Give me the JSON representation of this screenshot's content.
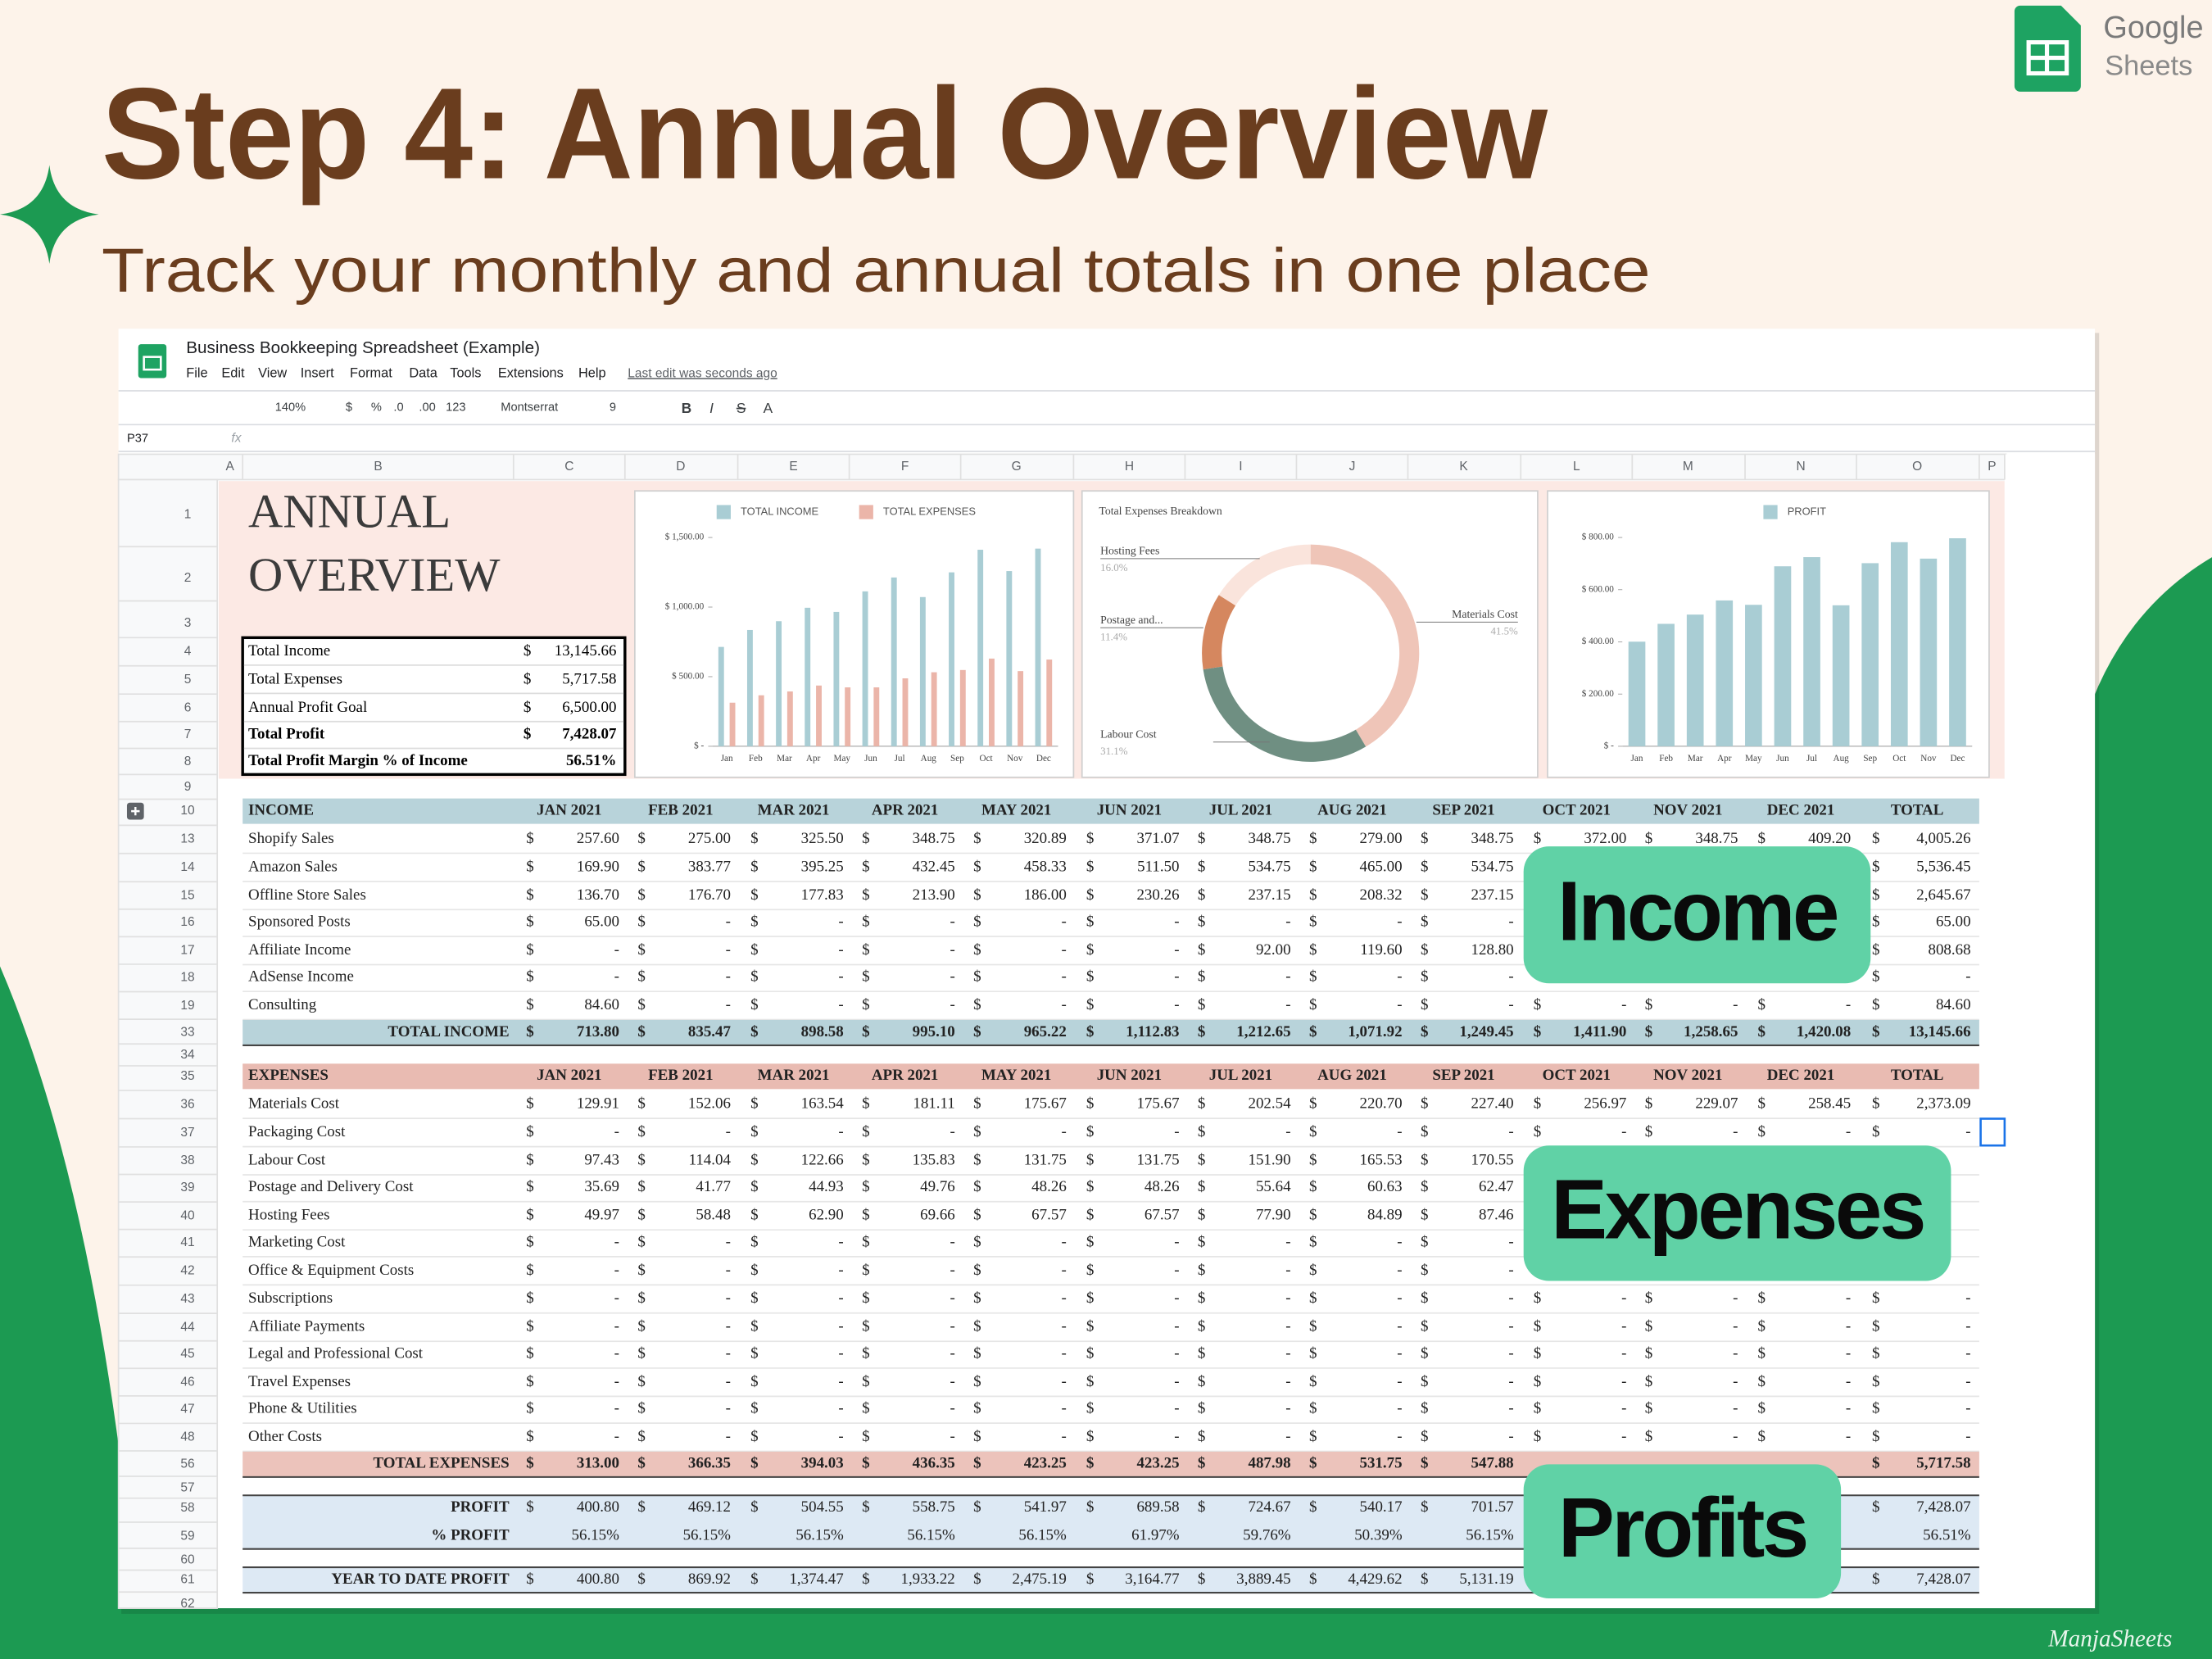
{
  "header": {
    "title": "Step 4: Annual Overview",
    "subtitle": "Track your monthly and annual totals in one place",
    "brand": [
      "Google",
      "Sheets"
    ]
  },
  "sheet": {
    "doc_title": "Business Bookkeeping Spreadsheet (Example)",
    "menus": [
      "File",
      "Edit",
      "View",
      "Insert",
      "Format",
      "Data",
      "Tools",
      "Extensions",
      "Help"
    ],
    "last_edit": "Last edit was seconds ago",
    "toolbar": {
      "zoom": "140%",
      "currency": "$",
      "percent": "%",
      "dec_less": ".0",
      "dec_more": ".00",
      "format": "123",
      "font": "Montserrat",
      "size": "9",
      "buttons": [
        "B",
        "I",
        "S",
        "A"
      ]
    },
    "name_box": "P37",
    "fx": "fx",
    "columns": [
      "A",
      "B",
      "C",
      "D",
      "E",
      "F",
      "G",
      "H",
      "I",
      "J",
      "K",
      "L",
      "M",
      "N",
      "O",
      "P"
    ],
    "rows": [
      "1",
      "2",
      "3",
      "4",
      "5",
      "6",
      "7",
      "8",
      "9",
      "10",
      "13",
      "14",
      "15",
      "16",
      "17",
      "18",
      "19",
      "33",
      "34",
      "35",
      "36",
      "37",
      "38",
      "39",
      "40",
      "41",
      "42",
      "43",
      "44",
      "45",
      "46",
      "47",
      "48",
      "56",
      "57",
      "58",
      "59",
      "60",
      "61",
      "62"
    ]
  },
  "overview": {
    "title": [
      "ANNUAL",
      "OVERVIEW"
    ],
    "currency": "$",
    "summary": [
      {
        "label": "Total Income",
        "value": "13,145.66"
      },
      {
        "label": "Total Expenses",
        "value": "5,717.58"
      },
      {
        "label": "Annual Profit Goal",
        "value": "6,500.00"
      },
      {
        "label": "Total Profit",
        "value": "7,428.07"
      },
      {
        "label": "Total Profit Margin % of Income",
        "value": "56.51%"
      }
    ]
  },
  "chart_data": [
    {
      "type": "bar",
      "categories": [
        "Jan",
        "Feb",
        "Mar",
        "Apr",
        "May",
        "Jun",
        "Jul",
        "Aug",
        "Sep",
        "Oct",
        "Nov",
        "Dec"
      ],
      "series": [
        {
          "name": "TOTAL INCOME",
          "color": "#a9cdd4",
          "values": [
            713.8,
            835.47,
            898.58,
            995.1,
            965.22,
            1112.83,
            1212.65,
            1071.92,
            1249.45,
            1411.9,
            1258.65,
            1420.08
          ]
        },
        {
          "name": "TOTAL EXPENSES",
          "color": "#ebb5a9",
          "values": [
            313,
            366.35,
            394.03,
            436.35,
            423.25,
            423.25,
            487.98,
            531.75,
            547.88,
            630,
            540,
            623
          ]
        }
      ],
      "ylim": [
        0,
        1500
      ],
      "yticks": [
        {
          "value": 0,
          "label": "$ -"
        },
        {
          "value": 500,
          "label": "$ 500.00"
        },
        {
          "value": 1000,
          "label": "$ 1,000.00"
        },
        {
          "value": 1500,
          "label": "$ 1,500.00"
        }
      ]
    },
    {
      "type": "pie",
      "title": "Total Expenses Breakdown",
      "categories": [
        "Materials Cost",
        "Labour Cost",
        "Postage and...",
        "Hosting Fees"
      ],
      "values": [
        41.5,
        31.1,
        11.4,
        16.0
      ],
      "value_labels": [
        "41.5%",
        "31.1%",
        "11.4%",
        "16.0%"
      ],
      "colors": [
        "#efc5b8",
        "#6f8f82",
        "#d5875f",
        "#fae4dc"
      ]
    },
    {
      "type": "bar",
      "categories": [
        "Jan",
        "Feb",
        "Mar",
        "Apr",
        "May",
        "Jun",
        "Jul",
        "Aug",
        "Sep",
        "Oct",
        "Nov",
        "Dec"
      ],
      "series": [
        {
          "name": "PROFIT",
          "color": "#a9cdd4",
          "values": [
            400.8,
            469.12,
            504.55,
            558.75,
            541.97,
            689.58,
            724.67,
            540.17,
            701.57,
            782,
            719,
            797
          ]
        }
      ],
      "ylim": [
        0,
        800
      ],
      "yticks": [
        {
          "value": 0,
          "label": "$ -"
        },
        {
          "value": 200,
          "label": "$ 200.00"
        },
        {
          "value": 400,
          "label": "$ 400.00"
        },
        {
          "value": 600,
          "label": "$ 600.00"
        },
        {
          "value": 800,
          "label": "$ 800.00"
        }
      ]
    }
  ],
  "tables": {
    "currency": "$",
    "months": [
      "JAN 2021",
      "FEB 2021",
      "MAR 2021",
      "APR 2021",
      "MAY 2021",
      "JUN 2021",
      "JUL 2021",
      "AUG 2021",
      "SEP 2021",
      "OCT 2021",
      "NOV 2021",
      "DEC 2021"
    ],
    "total_header": "TOTAL",
    "income": {
      "header": "INCOME",
      "rows": [
        {
          "label": "Shopify Sales",
          "values": [
            "257.60",
            "275.00",
            "325.50",
            "348.75",
            "320.89",
            "371.07",
            "348.75",
            "279.00",
            "348.75",
            "372.00",
            "348.75",
            "409.20"
          ],
          "total": "4,005.26"
        },
        {
          "label": "Amazon Sales",
          "values": [
            "169.90",
            "383.77",
            "395.25",
            "432.45",
            "458.33",
            "511.50",
            "534.75",
            "465.00",
            "534.75",
            null,
            null,
            null
          ],
          "total": "5,536.45"
        },
        {
          "label": "Offline Store Sales",
          "values": [
            "136.70",
            "176.70",
            "177.83",
            "213.90",
            "186.00",
            "230.26",
            "237.15",
            "208.32",
            "237.15",
            null,
            null,
            null
          ],
          "total": "2,645.67"
        },
        {
          "label": "Sponsored Posts",
          "values": [
            "65.00",
            "-",
            "-",
            "-",
            "-",
            "-",
            "-",
            "-",
            "-",
            null,
            null,
            null
          ],
          "total": "65.00"
        },
        {
          "label": "Affiliate Income",
          "values": [
            "-",
            "-",
            "-",
            "-",
            "-",
            "-",
            "92.00",
            "119.60",
            "128.80",
            null,
            null,
            null
          ],
          "total": "808.68"
        },
        {
          "label": "AdSense Income",
          "values": [
            "-",
            "-",
            "-",
            "-",
            "-",
            "-",
            "-",
            "-",
            "-",
            null,
            null,
            null
          ],
          "total": "-"
        },
        {
          "label": "Consulting",
          "values": [
            "84.60",
            "-",
            "-",
            "-",
            "-",
            "-",
            "-",
            "-",
            "-",
            "-",
            "-",
            "-"
          ],
          "total": "84.60"
        }
      ],
      "total": {
        "label": "TOTAL INCOME",
        "values": [
          "713.80",
          "835.47",
          "898.58",
          "995.10",
          "965.22",
          "1,112.83",
          "1,212.65",
          "1,071.92",
          "1,249.45",
          "1,411.90",
          "1,258.65",
          "1,420.08"
        ],
        "total": "13,145.66"
      }
    },
    "expenses": {
      "header": "EXPENSES",
      "rows": [
        {
          "label": "Materials Cost",
          "values": [
            "129.91",
            "152.06",
            "163.54",
            "181.11",
            "175.67",
            "175.67",
            "202.54",
            "220.70",
            "227.40",
            "256.97",
            "229.07",
            "258.45"
          ],
          "total": "2,373.09"
        },
        {
          "label": "Packaging Cost",
          "values": [
            "-",
            "-",
            "-",
            "-",
            "-",
            "-",
            "-",
            "-",
            "-",
            "-",
            "-",
            "-"
          ],
          "total": "-"
        },
        {
          "label": "Labour Cost",
          "values": [
            "97.43",
            "114.04",
            "122.66",
            "135.83",
            "131.75",
            "131.75",
            "151.90",
            "165.53",
            "170.55",
            null,
            null,
            null
          ],
          "total": null
        },
        {
          "label": "Postage and Delivery Cost",
          "values": [
            "35.69",
            "41.77",
            "44.93",
            "49.76",
            "48.26",
            "48.26",
            "55.64",
            "60.63",
            "62.47",
            null,
            null,
            null
          ],
          "total": null
        },
        {
          "label": "Hosting Fees",
          "values": [
            "49.97",
            "58.48",
            "62.90",
            "69.66",
            "67.57",
            "67.57",
            "77.90",
            "84.89",
            "87.46",
            null,
            null,
            null
          ],
          "total": null
        },
        {
          "label": "Marketing Cost",
          "values": [
            "-",
            "-",
            "-",
            "-",
            "-",
            "-",
            "-",
            "-",
            "-",
            null,
            null,
            null
          ],
          "total": null
        },
        {
          "label": "Office & Equipment Costs",
          "values": [
            "-",
            "-",
            "-",
            "-",
            "-",
            "-",
            "-",
            "-",
            "-",
            null,
            null,
            null
          ],
          "total": null
        },
        {
          "label": "Subscriptions",
          "values": [
            "-",
            "-",
            "-",
            "-",
            "-",
            "-",
            "-",
            "-",
            "-",
            "-",
            "-",
            "-"
          ],
          "total": "-"
        },
        {
          "label": "Affiliate Payments",
          "values": [
            "-",
            "-",
            "-",
            "-",
            "-",
            "-",
            "-",
            "-",
            "-",
            "-",
            "-",
            "-"
          ],
          "total": "-"
        },
        {
          "label": "Legal and Professional Cost",
          "values": [
            "-",
            "-",
            "-",
            "-",
            "-",
            "-",
            "-",
            "-",
            "-",
            "-",
            "-",
            "-"
          ],
          "total": "-"
        },
        {
          "label": "Travel Expenses",
          "values": [
            "-",
            "-",
            "-",
            "-",
            "-",
            "-",
            "-",
            "-",
            "-",
            "-",
            "-",
            "-"
          ],
          "total": "-"
        },
        {
          "label": "Phone & Utilities",
          "values": [
            "-",
            "-",
            "-",
            "-",
            "-",
            "-",
            "-",
            "-",
            "-",
            "-",
            "-",
            "-"
          ],
          "total": "-"
        },
        {
          "label": "Other Costs",
          "values": [
            "-",
            "-",
            "-",
            "-",
            "-",
            "-",
            "-",
            "-",
            "-",
            "-",
            "-",
            "-"
          ],
          "total": "-"
        }
      ],
      "total": {
        "label": "TOTAL EXPENSES",
        "values": [
          "313.00",
          "366.35",
          "394.03",
          "436.35",
          "423.25",
          "423.25",
          "487.98",
          "531.75",
          "547.88",
          null,
          null,
          null
        ],
        "total": "5,717.58"
      }
    },
    "profit": {
      "rows": [
        {
          "label": "PROFIT",
          "values": [
            "400.80",
            "469.12",
            "504.55",
            "558.75",
            "541.97",
            "689.58",
            "724.67",
            "540.17",
            "701.57",
            null,
            null,
            null
          ],
          "total": "7,428.07"
        },
        {
          "label": "% PROFIT",
          "values": [
            "56.15%",
            "56.15%",
            "56.15%",
            "56.15%",
            "56.15%",
            "61.97%",
            "59.76%",
            "50.39%",
            "56.15%",
            null,
            null,
            null
          ],
          "total": "56.51%"
        },
        {
          "label": "YEAR TO DATE PROFIT",
          "values": [
            "400.80",
            "869.92",
            "1,374.47",
            "1,933.22",
            "2,475.19",
            "3,164.77",
            "3,889.45",
            "4,429.62",
            "5,131.19",
            null,
            null,
            null
          ],
          "total": "7,428.07"
        }
      ]
    }
  },
  "callouts": [
    "Income",
    "Expenses",
    "Profits"
  ],
  "watermark": "ManjaSheets"
}
